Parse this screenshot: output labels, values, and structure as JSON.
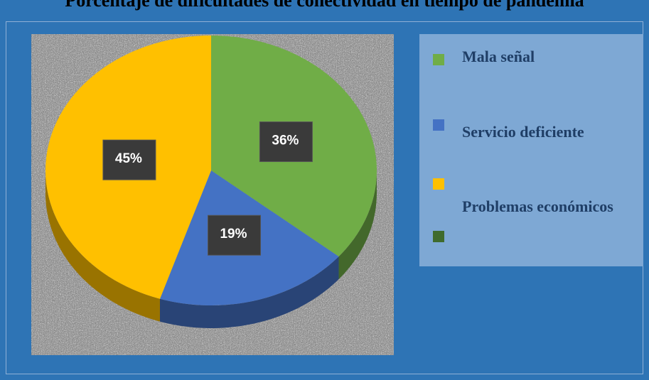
{
  "chart_data": {
    "type": "pie",
    "title": "Porcentaje de dificultades de conectividad en tiempo de pandemia",
    "categories": [
      "Mala señal",
      "Servicio deficiente",
      "Problemas económicos"
    ],
    "values": [
      36,
      19,
      45
    ],
    "value_labels": [
      "36%",
      "19%",
      "45%"
    ],
    "colors": [
      "#70ad47",
      "#4472c4",
      "#ffc000"
    ]
  }
}
